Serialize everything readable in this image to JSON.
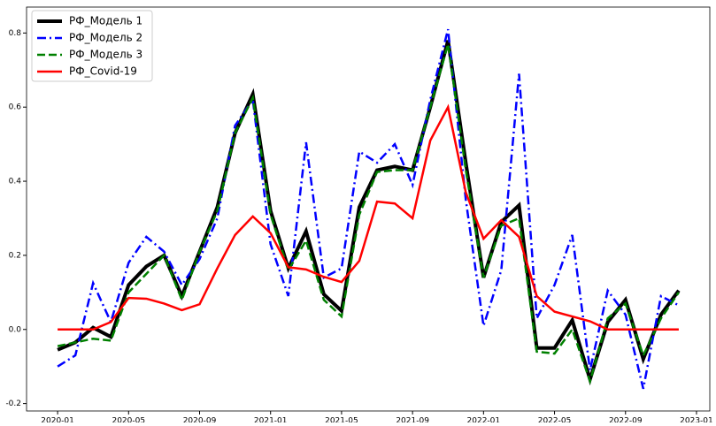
{
  "chart_data": {
    "type": "line",
    "x": [
      "2020-01",
      "2020-02",
      "2020-03",
      "2020-04",
      "2020-05",
      "2020-06",
      "2020-07",
      "2020-08",
      "2020-09",
      "2020-10",
      "2020-11",
      "2020-12",
      "2021-01",
      "2021-02",
      "2021-03",
      "2021-04",
      "2021-05",
      "2021-06",
      "2021-07",
      "2021-08",
      "2021-09",
      "2021-10",
      "2021-11",
      "2021-12",
      "2022-01",
      "2022-02",
      "2022-03",
      "2022-04",
      "2022-05",
      "2022-06",
      "2022-07",
      "2022-08",
      "2022-09",
      "2022-10",
      "2022-11",
      "2022-12"
    ],
    "series": [
      {
        "name": "РФ_Модель 1",
        "color": "#000000",
        "linestyle": "solid",
        "values": [
          -0.055,
          -0.035,
          0.005,
          -0.02,
          0.12,
          0.17,
          0.2,
          0.09,
          0.21,
          0.33,
          0.53,
          0.635,
          0.32,
          0.165,
          0.265,
          0.095,
          0.05,
          0.33,
          0.43,
          0.44,
          0.43,
          0.6,
          0.78,
          0.45,
          0.14,
          0.29,
          0.335,
          -0.05,
          -0.05,
          0.025,
          -0.135,
          0.02,
          0.08,
          -0.08,
          0.04,
          0.105
        ]
      },
      {
        "name": "РФ_Модель 2",
        "color": "#0000ff",
        "linestyle": "dashdot",
        "values": [
          -0.1,
          -0.07,
          0.125,
          0.02,
          0.18,
          0.25,
          0.21,
          0.12,
          0.19,
          0.3,
          0.55,
          0.62,
          0.23,
          0.09,
          0.505,
          0.14,
          0.165,
          0.48,
          0.45,
          0.5,
          0.39,
          0.62,
          0.81,
          0.35,
          0.01,
          0.16,
          0.69,
          0.03,
          0.12,
          0.255,
          -0.11,
          0.105,
          0.04,
          -0.16,
          0.09,
          0.065
        ]
      },
      {
        "name": "РФ_Модель 3",
        "color": "#008000",
        "linestyle": "dashed",
        "values": [
          -0.045,
          -0.035,
          -0.025,
          -0.03,
          0.1,
          0.15,
          0.2,
          0.08,
          0.21,
          0.32,
          0.53,
          0.625,
          0.31,
          0.16,
          0.24,
          0.08,
          0.035,
          0.31,
          0.425,
          0.43,
          0.43,
          0.6,
          0.77,
          0.43,
          0.14,
          0.28,
          0.3,
          -0.06,
          -0.065,
          0.0,
          -0.14,
          0.03,
          0.07,
          -0.07,
          0.03,
          0.1
        ]
      },
      {
        "name": "РФ_Covid-19",
        "color": "#ff0000",
        "linestyle": "solid",
        "values": [
          0,
          0,
          0,
          0.02,
          0.085,
          0.083,
          0.07,
          0.052,
          0.068,
          0.165,
          0.255,
          0.305,
          0.26,
          0.168,
          0.162,
          0.142,
          0.128,
          0.185,
          0.345,
          0.34,
          0.3,
          0.51,
          0.6,
          0.37,
          0.245,
          0.295,
          0.25,
          0.09,
          0.048,
          0.035,
          0.022,
          0,
          0,
          0,
          0,
          0
        ]
      }
    ],
    "ylim": [
      -0.22,
      0.87
    ],
    "yticks": [
      -0.2,
      {
        "value": 0,
        "label": "0.0"
      },
      0.2,
      0.4,
      0.6,
      0.8
    ],
    "xticks": [
      "2020-01",
      "2020-05",
      "2020-09",
      "2021-01",
      "2021-05",
      "2021-09",
      "2022-01",
      "2022-05",
      "2022-09",
      "2023-01"
    ],
    "legend": "upper left"
  }
}
